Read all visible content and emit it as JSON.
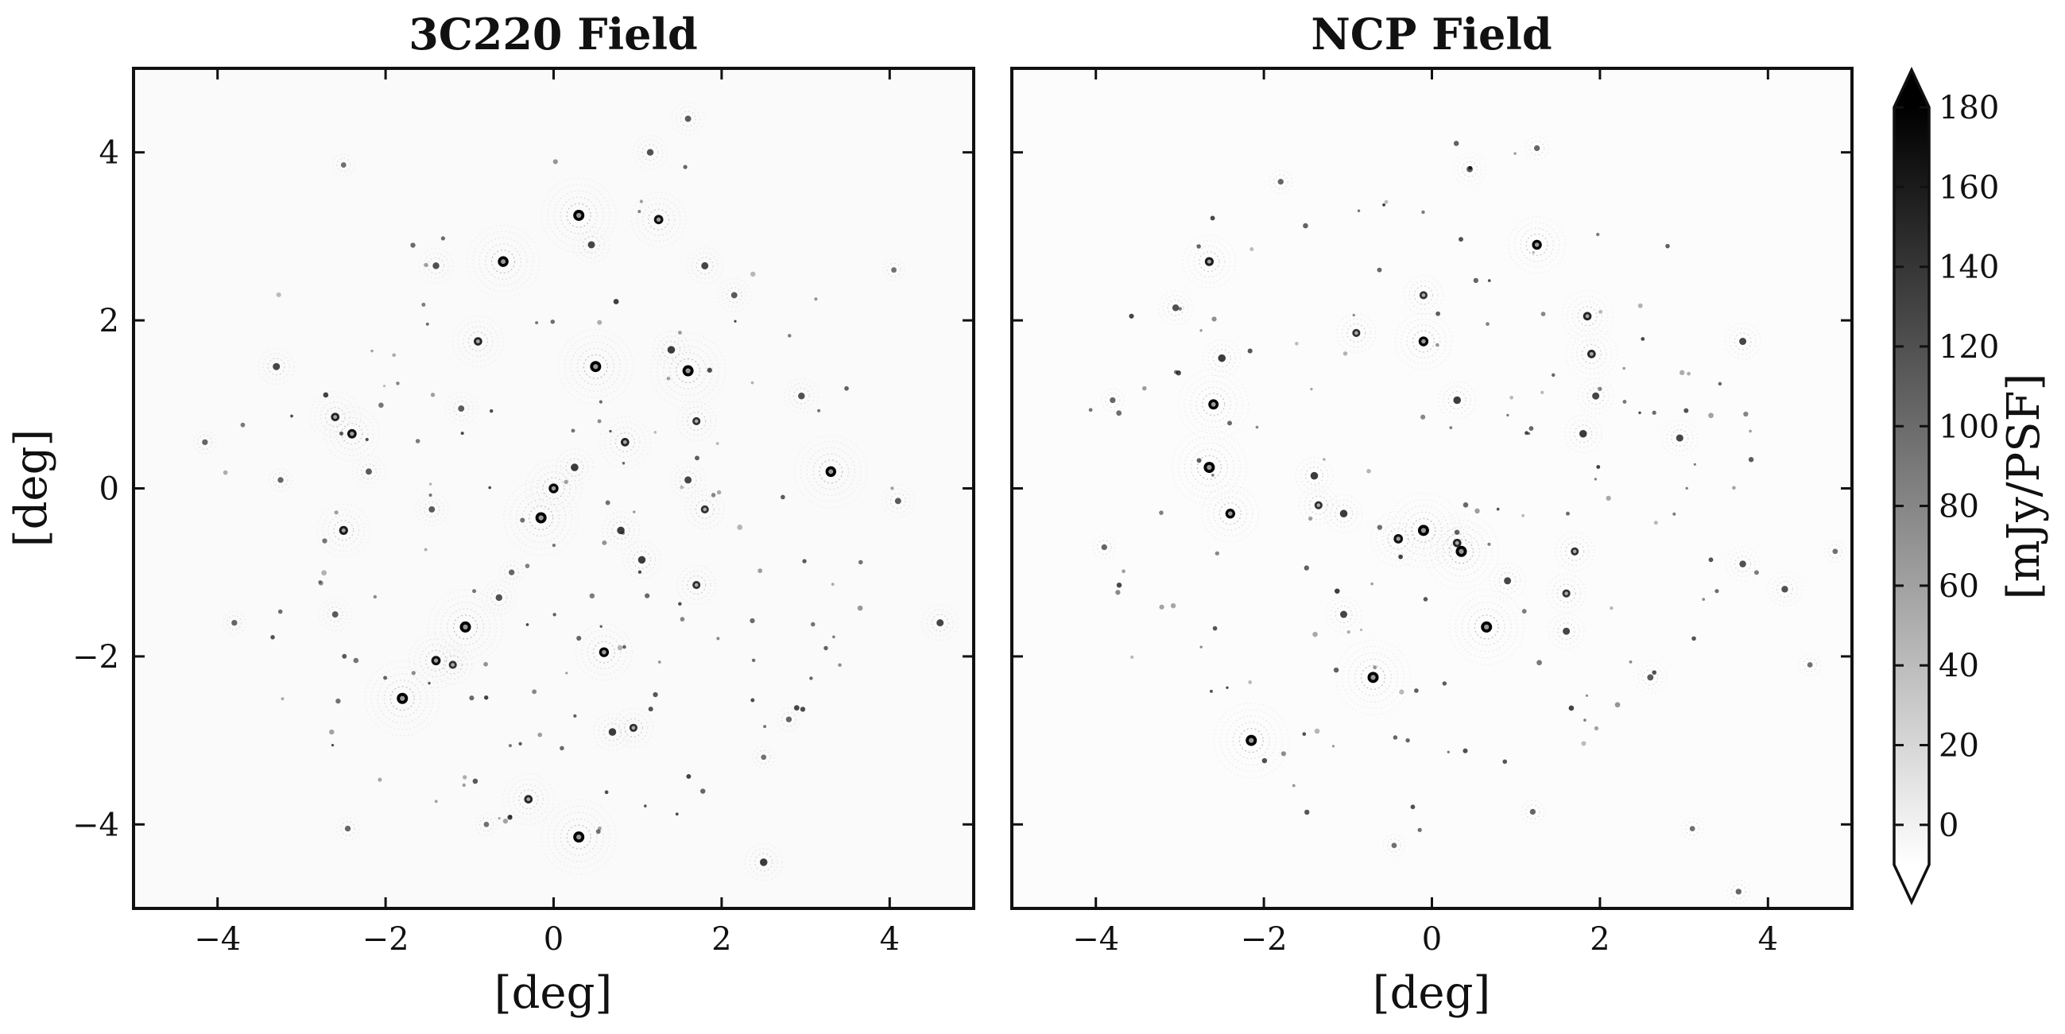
{
  "chart_data": [
    {
      "type": "heatmap",
      "title": "3C220 Field",
      "xlabel": "[deg]",
      "ylabel": "[deg]",
      "xlim": [
        -5,
        5
      ],
      "ylim": [
        -5,
        5
      ],
      "xticks": [
        -4,
        -2,
        0,
        2,
        4
      ],
      "yticks": [
        -4,
        -2,
        0,
        2,
        4
      ],
      "xtick_labels": [
        "−4",
        "−2",
        "0",
        "2",
        "4"
      ],
      "ytick_labels": [
        "−4",
        "−2",
        "0",
        "2",
        "4"
      ],
      "sources": [
        {
          "x": 0.3,
          "y": 3.25,
          "flux": 180
        },
        {
          "x": 1.25,
          "y": 3.2,
          "flux": 140
        },
        {
          "x": 0.45,
          "y": 2.9,
          "flux": 90
        },
        {
          "x": -0.6,
          "y": 2.7,
          "flux": 170
        },
        {
          "x": -1.4,
          "y": 2.65,
          "flux": 80
        },
        {
          "x": 1.8,
          "y": 2.65,
          "flux": 90
        },
        {
          "x": 2.15,
          "y": 2.3,
          "flux": 70
        },
        {
          "x": -0.9,
          "y": 1.75,
          "flux": 120
        },
        {
          "x": 0.5,
          "y": 1.45,
          "flux": 180
        },
        {
          "x": 1.6,
          "y": 1.4,
          "flux": 180
        },
        {
          "x": 1.4,
          "y": 1.65,
          "flux": 100
        },
        {
          "x": -3.3,
          "y": 1.45,
          "flux": 90
        },
        {
          "x": 2.95,
          "y": 1.1,
          "flux": 80
        },
        {
          "x": -2.6,
          "y": 0.85,
          "flux": 120
        },
        {
          "x": -2.4,
          "y": 0.65,
          "flux": 140
        },
        {
          "x": 1.7,
          "y": 0.8,
          "flux": 110
        },
        {
          "x": -1.1,
          "y": 0.95,
          "flux": 70
        },
        {
          "x": 0.85,
          "y": 0.55,
          "flux": 120
        },
        {
          "x": -4.15,
          "y": 0.55,
          "flux": 60
        },
        {
          "x": 0.25,
          "y": 0.25,
          "flux": 100
        },
        {
          "x": -2.2,
          "y": 0.2,
          "flux": 70
        },
        {
          "x": -3.25,
          "y": 0.1,
          "flux": 60
        },
        {
          "x": 0.0,
          "y": 0.0,
          "flux": 150
        },
        {
          "x": 3.3,
          "y": 0.2,
          "flux": 170
        },
        {
          "x": 1.6,
          "y": 0.1,
          "flux": 90
        },
        {
          "x": 1.8,
          "y": -0.25,
          "flux": 110
        },
        {
          "x": -0.15,
          "y": -0.35,
          "flux": 180
        },
        {
          "x": -1.45,
          "y": -0.25,
          "flux": 70
        },
        {
          "x": -2.5,
          "y": -0.5,
          "flux": 130
        },
        {
          "x": 0.8,
          "y": -0.5,
          "flux": 100
        },
        {
          "x": 4.1,
          "y": -0.15,
          "flux": 70
        },
        {
          "x": 1.05,
          "y": -0.85,
          "flux": 100
        },
        {
          "x": -0.5,
          "y": -1.0,
          "flux": 60
        },
        {
          "x": 1.7,
          "y": -1.15,
          "flux": 110
        },
        {
          "x": -1.05,
          "y": -1.65,
          "flux": 180
        },
        {
          "x": -2.6,
          "y": -1.5,
          "flux": 70
        },
        {
          "x": -0.65,
          "y": -1.3,
          "flux": 80
        },
        {
          "x": 0.6,
          "y": -1.95,
          "flux": 150
        },
        {
          "x": -1.4,
          "y": -2.05,
          "flux": 140
        },
        {
          "x": -1.2,
          "y": -2.1,
          "flux": 110
        },
        {
          "x": 4.6,
          "y": -1.6,
          "flux": 90
        },
        {
          "x": -3.8,
          "y": -1.6,
          "flux": 60
        },
        {
          "x": -1.8,
          "y": -2.5,
          "flux": 180
        },
        {
          "x": 0.7,
          "y": -2.9,
          "flux": 100
        },
        {
          "x": 0.95,
          "y": -2.85,
          "flux": 110
        },
        {
          "x": 2.8,
          "y": -2.75,
          "flux": 60
        },
        {
          "x": -0.3,
          "y": -3.7,
          "flux": 120
        },
        {
          "x": 0.3,
          "y": -4.15,
          "flux": 180
        },
        {
          "x": 2.5,
          "y": -4.45,
          "flux": 100
        },
        {
          "x": 1.6,
          "y": 4.4,
          "flux": 70
        },
        {
          "x": 1.15,
          "y": 4.0,
          "flux": 80
        },
        {
          "x": -2.5,
          "y": 3.85,
          "flux": 50
        },
        {
          "x": 4.05,
          "y": 2.6,
          "flux": 50
        },
        {
          "x": -2.45,
          "y": -4.05,
          "flux": 60
        },
        {
          "x": -0.8,
          "y": -4.0,
          "flux": 50
        },
        {
          "x": 2.5,
          "y": -3.2,
          "flux": 50
        }
      ]
    },
    {
      "type": "heatmap",
      "title": "NCP Field",
      "xlabel": "[deg]",
      "ylabel": "",
      "xlim": [
        -5,
        5
      ],
      "ylim": [
        -5,
        5
      ],
      "xticks": [
        -4,
        -2,
        0,
        2,
        4
      ],
      "yticks": [
        -4,
        -2,
        0,
        2,
        4
      ],
      "xtick_labels": [
        "−4",
        "−2",
        "0",
        "2",
        "4"
      ],
      "sources": [
        {
          "x": 0.45,
          "y": 3.8,
          "flux": 70
        },
        {
          "x": 1.25,
          "y": 4.05,
          "flux": 60
        },
        {
          "x": -1.8,
          "y": 3.65,
          "flux": 60
        },
        {
          "x": 1.25,
          "y": 2.9,
          "flux": 150
        },
        {
          "x": -2.65,
          "y": 2.7,
          "flux": 130
        },
        {
          "x": -3.05,
          "y": 2.15,
          "flux": 80
        },
        {
          "x": -0.1,
          "y": 2.3,
          "flux": 110
        },
        {
          "x": 1.85,
          "y": 2.05,
          "flux": 120
        },
        {
          "x": -0.9,
          "y": 1.85,
          "flux": 110
        },
        {
          "x": -0.1,
          "y": 1.75,
          "flux": 150
        },
        {
          "x": 1.9,
          "y": 1.6,
          "flux": 120
        },
        {
          "x": -2.5,
          "y": 1.55,
          "flux": 100
        },
        {
          "x": 3.7,
          "y": 1.75,
          "flux": 90
        },
        {
          "x": -2.6,
          "y": 1.0,
          "flux": 160
        },
        {
          "x": 1.95,
          "y": 1.1,
          "flux": 90
        },
        {
          "x": 0.3,
          "y": 1.05,
          "flux": 100
        },
        {
          "x": -3.8,
          "y": 1.05,
          "flux": 60
        },
        {
          "x": 1.8,
          "y": 0.65,
          "flux": 100
        },
        {
          "x": -2.65,
          "y": 0.25,
          "flux": 180
        },
        {
          "x": 2.95,
          "y": 0.6,
          "flux": 90
        },
        {
          "x": -1.4,
          "y": 0.15,
          "flux": 100
        },
        {
          "x": -2.4,
          "y": -0.3,
          "flux": 150
        },
        {
          "x": -1.35,
          "y": -0.2,
          "flux": 110
        },
        {
          "x": -1.05,
          "y": -0.3,
          "flux": 100
        },
        {
          "x": -0.1,
          "y": -0.5,
          "flux": 180
        },
        {
          "x": -0.4,
          "y": -0.6,
          "flux": 140
        },
        {
          "x": 0.35,
          "y": -0.75,
          "flux": 180
        },
        {
          "x": 0.3,
          "y": -0.65,
          "flux": 120
        },
        {
          "x": 1.7,
          "y": -0.75,
          "flux": 110
        },
        {
          "x": 0.9,
          "y": -1.1,
          "flux": 90
        },
        {
          "x": 1.6,
          "y": -1.25,
          "flux": 110
        },
        {
          "x": -1.05,
          "y": -1.5,
          "flux": 90
        },
        {
          "x": 0.65,
          "y": -1.65,
          "flux": 180
        },
        {
          "x": 1.6,
          "y": -1.7,
          "flux": 90
        },
        {
          "x": 3.7,
          "y": -0.9,
          "flux": 80
        },
        {
          "x": 4.2,
          "y": -1.2,
          "flux": 80
        },
        {
          "x": -3.9,
          "y": -0.7,
          "flux": 60
        },
        {
          "x": -0.7,
          "y": -2.25,
          "flux": 180
        },
        {
          "x": 2.6,
          "y": -2.25,
          "flux": 70
        },
        {
          "x": -2.15,
          "y": -3.0,
          "flux": 180
        },
        {
          "x": 1.2,
          "y": -3.85,
          "flux": 60
        },
        {
          "x": 3.1,
          "y": -4.05,
          "flux": 50
        },
        {
          "x": -0.45,
          "y": -4.25,
          "flux": 50
        },
        {
          "x": 3.65,
          "y": -4.8,
          "flux": 60
        },
        {
          "x": 4.8,
          "y": -0.75,
          "flux": 50
        },
        {
          "x": 4.5,
          "y": -2.1,
          "flux": 50
        }
      ]
    }
  ],
  "colorbar": {
    "label": "[mJy/PSF]",
    "range": [
      -10,
      180
    ],
    "extend": "both",
    "ticks": [
      0,
      20,
      40,
      60,
      80,
      100,
      120,
      140,
      160,
      180
    ],
    "tick_labels": [
      "0",
      "20",
      "40",
      "60",
      "80",
      "100",
      "120",
      "140",
      "160",
      "180"
    ],
    "cmap": [
      "#ffffff",
      "#000000"
    ]
  }
}
